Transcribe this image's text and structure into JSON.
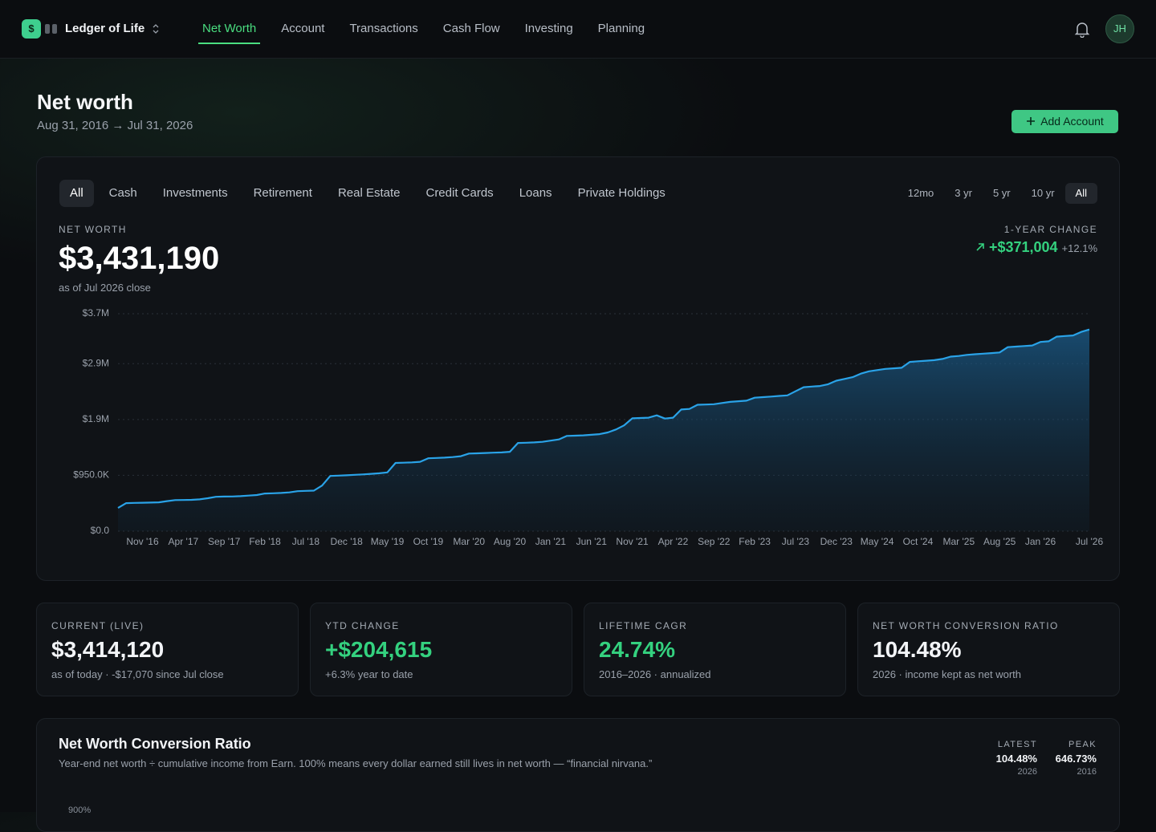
{
  "nav": {
    "logo": "$",
    "brand": "Ledger of Life",
    "tabs": [
      "Net Worth",
      "Account",
      "Transactions",
      "Cash Flow",
      "Investing",
      "Planning"
    ],
    "active_tab": 0,
    "avatar": "JH"
  },
  "header": {
    "title": "Net worth",
    "date_range": "Aug 31, 2016 → Jul 31, 2026",
    "button": "Add Account"
  },
  "filters": {
    "categories": [
      "All",
      "Cash",
      "Investments",
      "Retirement",
      "Real Estate",
      "Credit Cards",
      "Loans",
      "Private Holdings"
    ],
    "active_category": 0,
    "ranges": [
      "12mo",
      "3 yr",
      "5 yr",
      "10 yr",
      "All"
    ],
    "active_range": 4
  },
  "summary": {
    "label": "NET WORTH",
    "value": "$3,431,190",
    "note": "as of Jul 2026 close",
    "change_label": "1-YEAR CHANGE",
    "change_value": "+$371,004",
    "change_pct": "+12.1%"
  },
  "chart_data": {
    "type": "area",
    "color": "#2aa3e8",
    "grid": true,
    "ylim": [
      0,
      3700000
    ],
    "yticks": [
      {
        "value": 0,
        "label": "$0.0"
      },
      {
        "value": 950000,
        "label": "$950.0K"
      },
      {
        "value": 1900000,
        "label": "$1.9M"
      },
      {
        "value": 2850000,
        "label": "$2.9M"
      },
      {
        "value": 3700000,
        "label": "$3.7M"
      }
    ],
    "categories": [
      null,
      null,
      null,
      "Nov '16",
      null,
      null,
      null,
      null,
      "Apr '17",
      null,
      null,
      null,
      null,
      "Sep '17",
      null,
      null,
      null,
      null,
      "Feb '18",
      null,
      null,
      null,
      null,
      "Jul '18",
      null,
      null,
      null,
      null,
      "Dec '18",
      null,
      null,
      null,
      null,
      "May '19",
      null,
      null,
      null,
      null,
      "Oct '19",
      null,
      null,
      null,
      null,
      "Mar '20",
      null,
      null,
      null,
      null,
      "Aug '20",
      null,
      null,
      null,
      null,
      "Jan '21",
      null,
      null,
      null,
      null,
      "Jun '21",
      null,
      null,
      null,
      null,
      "Nov '21",
      null,
      null,
      null,
      null,
      "Apr '22",
      null,
      null,
      null,
      null,
      "Sep '22",
      null,
      null,
      null,
      null,
      "Feb '23",
      null,
      null,
      null,
      null,
      "Jul '23",
      null,
      null,
      null,
      null,
      "Dec '23",
      null,
      null,
      null,
      null,
      "May '24",
      null,
      null,
      null,
      null,
      "Oct '24",
      null,
      null,
      null,
      null,
      "Mar '25",
      null,
      null,
      null,
      null,
      "Aug '25",
      null,
      null,
      null,
      null,
      "Jan '26",
      null,
      null,
      null,
      null,
      null,
      "Jul '26"
    ],
    "values": [
      395000,
      476000,
      480000,
      483000,
      486000,
      490000,
      510000,
      528000,
      530000,
      532000,
      540000,
      560000,
      585000,
      588000,
      590000,
      595000,
      605000,
      615000,
      640000,
      645000,
      650000,
      660000,
      680000,
      685000,
      690000,
      775000,
      940000,
      945000,
      950000,
      958000,
      965000,
      975000,
      985000,
      1000000,
      1160000,
      1165000,
      1170000,
      1180000,
      1240000,
      1245000,
      1250000,
      1260000,
      1275000,
      1320000,
      1325000,
      1330000,
      1335000,
      1340000,
      1350000,
      1500000,
      1505000,
      1510000,
      1520000,
      1540000,
      1560000,
      1620000,
      1625000,
      1630000,
      1640000,
      1650000,
      1680000,
      1730000,
      1800000,
      1920000,
      1925000,
      1930000,
      1970000,
      1915000,
      1930000,
      2070000,
      2080000,
      2150000,
      2155000,
      2160000,
      2180000,
      2200000,
      2210000,
      2220000,
      2270000,
      2280000,
      2290000,
      2300000,
      2310000,
      2380000,
      2450000,
      2460000,
      2470000,
      2500000,
      2560000,
      2590000,
      2620000,
      2680000,
      2720000,
      2740000,
      2760000,
      2770000,
      2780000,
      2880000,
      2890000,
      2900000,
      2910000,
      2930000,
      2970000,
      2980000,
      3000000,
      3010000,
      3020000,
      3030000,
      3040000,
      3130000,
      3140000,
      3150000,
      3160000,
      3220000,
      3230000,
      3310000,
      3320000,
      3330000,
      3390000,
      3431190
    ]
  },
  "stats": [
    {
      "label": "CURRENT (LIVE)",
      "value": "$3,414,120",
      "note": "as of today · -$17,070 since Jul close",
      "color": "#f2f4f7"
    },
    {
      "label": "YTD CHANGE",
      "value": "+$204,615",
      "note": "+6.3% year to date",
      "color": "#34d17f"
    },
    {
      "label": "LIFETIME CAGR",
      "value": "24.74%",
      "note": "2016–2026 · annualized",
      "color": "#34d17f"
    },
    {
      "label": "NET WORTH CONVERSION RATIO",
      "value": "104.48%",
      "note": "2026 · income kept as net worth",
      "color": "#f2f4f7"
    }
  ],
  "ratio": {
    "title": "Net Worth Conversion Ratio",
    "description": "Year-end net worth ÷ cumulative income from Earn. 100% means every dollar earned still lives in net worth — “financial nirvana.”",
    "latest_label": "LATEST",
    "latest_value": "104.48%",
    "latest_year": "2026",
    "peak_label": "PEAK",
    "peak_value": "646.73%",
    "peak_year": "2016",
    "top_tick": "900%"
  }
}
